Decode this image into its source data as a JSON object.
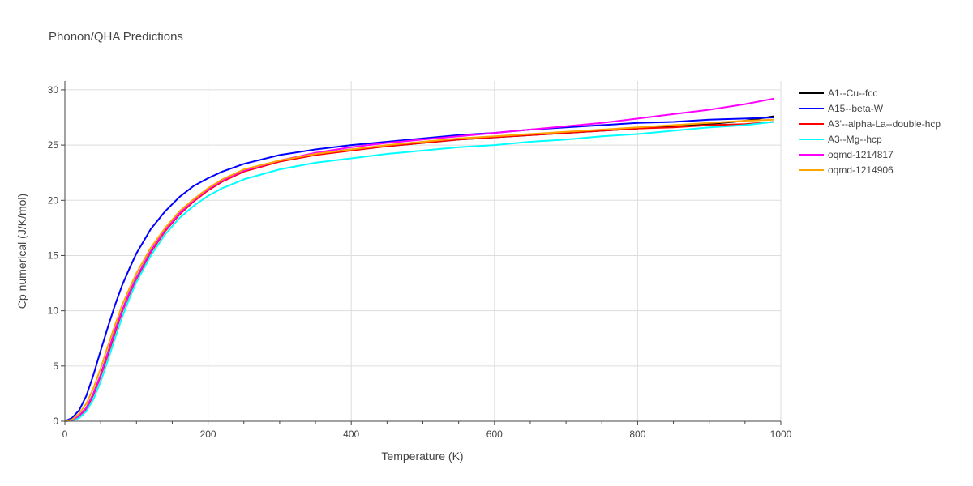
{
  "chart_data": {
    "type": "line",
    "title": "Phonon/QHA Predictions",
    "xlabel": "Temperature (K)",
    "ylabel": "Cp numerical (J/K/mol)",
    "xlim": [
      0,
      1000
    ],
    "ylim": [
      0,
      30.8
    ],
    "xticks": [
      0,
      200,
      400,
      600,
      800,
      1000
    ],
    "yticks": [
      0,
      5,
      10,
      15,
      20,
      25,
      30
    ],
    "grid": true,
    "legend_position": "right",
    "series": [
      {
        "name": "A1--Cu--fcc",
        "color": "#000000",
        "x": [
          0,
          10,
          20,
          30,
          40,
          50,
          60,
          70,
          80,
          90,
          100,
          120,
          140,
          160,
          180,
          200,
          220,
          250,
          300,
          350,
          400,
          450,
          500,
          550,
          600,
          650,
          700,
          750,
          800,
          850,
          900,
          950,
          990
        ],
        "y": [
          0,
          0.1,
          0.5,
          1.2,
          2.5,
          4.2,
          6.2,
          8.2,
          10.0,
          11.6,
          13.0,
          15.4,
          17.3,
          18.8,
          20.0,
          21.0,
          21.8,
          22.7,
          23.6,
          24.2,
          24.6,
          24.9,
          25.2,
          25.5,
          25.7,
          25.9,
          26.1,
          26.3,
          26.5,
          26.7,
          26.9,
          27.2,
          27.6
        ]
      },
      {
        "name": "A15--beta-W",
        "color": "#0000ff",
        "x": [
          0,
          10,
          20,
          30,
          40,
          50,
          60,
          70,
          80,
          90,
          100,
          120,
          140,
          160,
          180,
          200,
          220,
          250,
          300,
          350,
          400,
          450,
          500,
          550,
          600,
          650,
          700,
          750,
          800,
          850,
          900,
          950,
          990
        ],
        "y": [
          0,
          0.3,
          1.0,
          2.3,
          4.2,
          6.4,
          8.5,
          10.5,
          12.3,
          13.8,
          15.2,
          17.4,
          19.0,
          20.3,
          21.3,
          22.0,
          22.6,
          23.3,
          24.1,
          24.6,
          25.0,
          25.3,
          25.6,
          25.9,
          26.1,
          26.4,
          26.6,
          26.8,
          27.0,
          27.1,
          27.3,
          27.4,
          27.5
        ]
      },
      {
        "name": "A3'--alpha-La--double-hcp",
        "color": "#ff0000",
        "x": [
          0,
          10,
          20,
          30,
          40,
          50,
          60,
          70,
          80,
          90,
          100,
          120,
          140,
          160,
          180,
          200,
          220,
          250,
          300,
          350,
          400,
          450,
          500,
          550,
          600,
          650,
          700,
          750,
          800,
          850,
          900,
          950,
          990
        ],
        "y": [
          0,
          0.1,
          0.4,
          1.1,
          2.4,
          4.1,
          6.0,
          8.0,
          9.9,
          11.5,
          12.9,
          15.3,
          17.2,
          18.7,
          19.9,
          20.9,
          21.7,
          22.6,
          23.5,
          24.1,
          24.5,
          24.9,
          25.2,
          25.5,
          25.7,
          25.9,
          26.1,
          26.3,
          26.5,
          26.6,
          26.8,
          26.9,
          27.1
        ]
      },
      {
        "name": "A3--Mg--hcp",
        "color": "#00ffff",
        "x": [
          0,
          10,
          20,
          30,
          40,
          50,
          60,
          70,
          80,
          90,
          100,
          120,
          140,
          160,
          180,
          200,
          220,
          250,
          300,
          350,
          400,
          450,
          500,
          550,
          600,
          650,
          700,
          750,
          800,
          850,
          900,
          950,
          990
        ],
        "y": [
          0,
          0.05,
          0.3,
          0.9,
          2.0,
          3.6,
          5.5,
          7.5,
          9.4,
          11.1,
          12.6,
          15.0,
          16.9,
          18.4,
          19.5,
          20.4,
          21.1,
          21.9,
          22.8,
          23.4,
          23.8,
          24.2,
          24.5,
          24.8,
          25.0,
          25.3,
          25.5,
          25.8,
          26.0,
          26.3,
          26.6,
          26.8,
          27.1
        ]
      },
      {
        "name": "oqmd-1214817",
        "color": "#ff00ff",
        "x": [
          0,
          10,
          20,
          30,
          40,
          50,
          60,
          70,
          80,
          90,
          100,
          120,
          140,
          160,
          180,
          200,
          220,
          250,
          300,
          350,
          400,
          450,
          500,
          550,
          600,
          650,
          700,
          750,
          800,
          850,
          900,
          950,
          990
        ],
        "y": [
          0,
          0.1,
          0.5,
          1.2,
          2.5,
          4.2,
          6.2,
          8.2,
          10.0,
          11.6,
          13.0,
          15.4,
          17.3,
          18.8,
          20.0,
          21.0,
          21.8,
          22.7,
          23.6,
          24.3,
          24.8,
          25.2,
          25.5,
          25.8,
          26.1,
          26.4,
          26.7,
          27.0,
          27.4,
          27.8,
          28.2,
          28.7,
          29.2
        ]
      },
      {
        "name": "oqmd-1214906",
        "color": "#ffa500",
        "x": [
          0,
          10,
          20,
          30,
          40,
          50,
          60,
          70,
          80,
          90,
          100,
          120,
          140,
          160,
          180,
          200,
          220,
          250,
          300,
          350,
          400,
          450,
          500,
          550,
          600,
          650,
          700,
          750,
          800,
          850,
          900,
          950,
          990
        ],
        "y": [
          0,
          0.15,
          0.7,
          1.6,
          3.0,
          4.8,
          6.8,
          8.7,
          10.5,
          12.0,
          13.4,
          15.7,
          17.5,
          19.0,
          20.1,
          21.1,
          21.9,
          22.8,
          23.6,
          24.2,
          24.6,
          25.0,
          25.3,
          25.6,
          25.8,
          26.0,
          26.2,
          26.4,
          26.6,
          26.8,
          27.0,
          27.2,
          27.3
        ]
      }
    ]
  }
}
